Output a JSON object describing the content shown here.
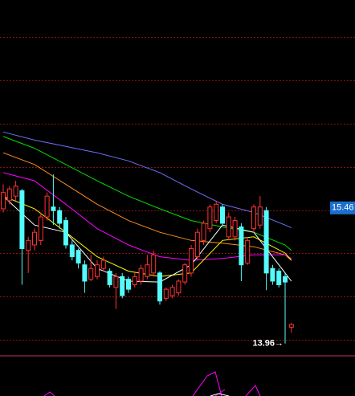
{
  "chart_data": {
    "type": "candlestick",
    "ylim": [
      13.85,
      17.76
    ],
    "yticks": [
      14.0,
      14.48,
      14.96,
      15.43,
      15.91,
      16.39,
      16.87,
      17.35
    ],
    "grid": true,
    "up_color": "#ff3232",
    "down_color": "#54fcfc",
    "candles": [
      [
        15.45,
        15.72,
        15.41,
        15.63
      ],
      [
        15.54,
        15.7,
        15.5,
        15.67
      ],
      [
        15.59,
        15.76,
        15.54,
        15.7
      ],
      [
        15.65,
        15.67,
        14.61,
        15.01
      ],
      [
        14.99,
        15.14,
        14.74,
        15.1
      ],
      [
        15.05,
        15.23,
        14.99,
        15.19
      ],
      [
        15.1,
        15.41,
        15.05,
        15.36
      ],
      [
        15.36,
        15.63,
        15.32,
        15.59
      ],
      [
        15.47,
        15.83,
        15.27,
        15.43
      ],
      [
        15.43,
        15.47,
        15.23,
        15.29
      ],
      [
        15.32,
        15.36,
        15.01,
        15.05
      ],
      [
        15.05,
        15.1,
        14.88,
        14.92
      ],
      [
        14.99,
        15.01,
        14.79,
        14.85
      ],
      [
        14.83,
        14.88,
        14.52,
        14.65
      ],
      [
        14.67,
        14.94,
        14.65,
        14.79
      ],
      [
        14.7,
        14.88,
        14.67,
        14.83
      ],
      [
        14.79,
        14.92,
        14.76,
        14.88
      ],
      [
        14.76,
        14.79,
        14.58,
        14.61
      ],
      [
        14.58,
        14.74,
        14.34,
        14.7
      ],
      [
        14.7,
        14.74,
        14.46,
        14.49
      ],
      [
        14.67,
        14.7,
        14.52,
        14.56
      ],
      [
        14.61,
        14.74,
        14.58,
        14.7
      ],
      [
        14.65,
        14.83,
        14.61,
        14.79
      ],
      [
        14.7,
        14.94,
        14.67,
        14.83
      ],
      [
        14.74,
        14.99,
        14.7,
        14.94
      ],
      [
        14.74,
        14.76,
        14.39,
        14.43
      ],
      [
        14.46,
        14.58,
        14.43,
        14.56
      ],
      [
        14.49,
        14.61,
        14.46,
        14.58
      ],
      [
        14.52,
        14.67,
        14.49,
        14.65
      ],
      [
        14.64,
        14.85,
        14.61,
        14.83
      ],
      [
        14.74,
        15.05,
        14.7,
        15.01
      ],
      [
        14.92,
        15.23,
        14.88,
        15.19
      ],
      [
        15.1,
        15.32,
        15.05,
        15.29
      ],
      [
        15.23,
        15.5,
        15.19,
        15.47
      ],
      [
        15.32,
        15.54,
        15.29,
        15.5
      ],
      [
        15.47,
        15.5,
        15.27,
        15.29
      ],
      [
        15.14,
        15.41,
        15.1,
        15.36
      ],
      [
        15.14,
        15.36,
        15.1,
        15.32
      ],
      [
        15.25,
        15.29,
        14.65,
        14.83
      ],
      [
        14.85,
        15.14,
        14.83,
        15.1
      ],
      [
        15.23,
        15.5,
        15.19,
        15.47
      ],
      [
        15.27,
        15.59,
        15.23,
        15.47
      ],
      [
        15.43,
        15.47,
        14.55,
        14.74
      ],
      [
        14.79,
        14.83,
        14.61,
        14.65
      ],
      [
        14.76,
        14.79,
        14.58,
        14.61
      ],
      [
        14.7,
        14.74,
        13.96,
        14.64
      ],
      [
        14.14,
        14.19,
        14.08,
        14.17
      ]
    ],
    "series": [
      {
        "color": "#6f6fff",
        "x": [
          0,
          5,
          10,
          15,
          20,
          25,
          30,
          35,
          40,
          45,
          46
        ],
        "values": [
          16.3,
          16.21,
          16.14,
          16.07,
          15.98,
          15.85,
          15.67,
          15.5,
          15.41,
          15.27,
          15.24
        ]
      },
      {
        "color": "#00e000",
        "x": [
          0,
          5,
          10,
          15,
          20,
          25,
          30,
          35,
          40,
          45,
          46
        ],
        "values": [
          16.25,
          16.12,
          15.94,
          15.76,
          15.59,
          15.45,
          15.32,
          15.25,
          15.19,
          15.05,
          14.99
        ]
      },
      {
        "color": "#ff8c1a",
        "x": [
          0,
          5,
          10,
          15,
          20,
          25,
          30,
          35,
          40,
          45,
          46
        ],
        "values": [
          16.07,
          15.94,
          15.72,
          15.5,
          15.32,
          15.19,
          15.1,
          15.07,
          15.03,
          14.94,
          14.88
        ]
      },
      {
        "color": "#ff00ff",
        "x": [
          0,
          5,
          10,
          15,
          20,
          25,
          30,
          35,
          40,
          45,
          46
        ],
        "values": [
          15.85,
          15.76,
          15.5,
          15.23,
          15.05,
          14.92,
          14.88,
          14.9,
          14.94,
          14.94,
          14.9
        ]
      },
      {
        "color": "#ffff00",
        "x": [
          0,
          5,
          10,
          15,
          20,
          25,
          30,
          35,
          40,
          45,
          46
        ],
        "values": [
          15.59,
          15.45,
          15.19,
          14.92,
          14.76,
          14.7,
          14.74,
          15.1,
          15.14,
          14.96,
          14.88
        ]
      },
      {
        "color": "#ffffff",
        "x": [
          0,
          5,
          10,
          15,
          20,
          25,
          30,
          35,
          40,
          45,
          46
        ],
        "values": [
          15.59,
          15.27,
          15.19,
          14.79,
          14.65,
          14.64,
          14.83,
          15.27,
          15.19,
          14.74,
          14.65
        ]
      }
    ],
    "price_tag": 15.46,
    "low_label": "13.96→"
  }
}
